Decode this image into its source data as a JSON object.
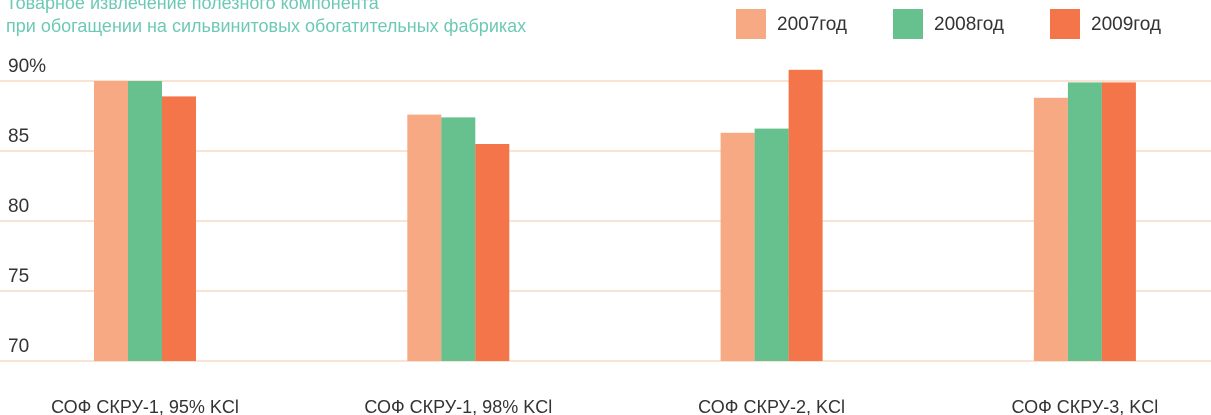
{
  "chart_data": {
    "type": "bar",
    "title": "Товарное извлечение полезного компонента",
    "subtitle": "при обогащении на сильвинитовых обогатительных фабриках",
    "categories": [
      "СОФ СКРУ-1, 95% KCl",
      "СОФ СКРУ-1, 98% KCl",
      "СОФ СКРУ-2, KCl",
      "СОФ СКРУ-3, KCl"
    ],
    "series": [
      {
        "name": "2007год",
        "color": "#f7a983",
        "values": [
          90,
          87.6,
          86.3,
          88.8
        ]
      },
      {
        "name": "2008год",
        "color": "#66c18f",
        "values": [
          90,
          87.4,
          86.6,
          89.9
        ]
      },
      {
        "name": "2009год",
        "color": "#f4754a",
        "values": [
          88.9,
          85.5,
          90.8,
          89.9
        ]
      }
    ],
    "ylim": [
      70,
      90
    ],
    "yticks": [
      70,
      75,
      80,
      85,
      {
        "value": 90,
        "label": "90%"
      }
    ],
    "grid": true,
    "legend": "top-right"
  }
}
